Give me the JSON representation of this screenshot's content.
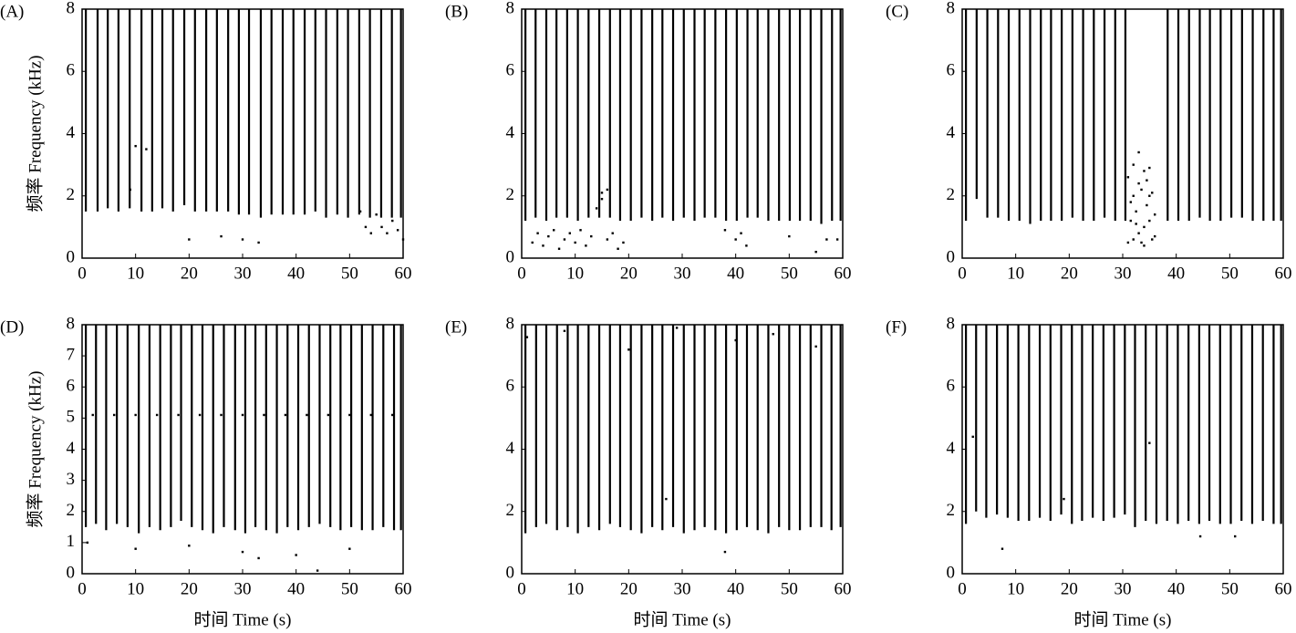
{
  "chart_data": [
    {
      "type": "stripe",
      "title": "(A)",
      "ylabel": "频率 Frequency (kHz)",
      "color": "#000000",
      "x": [
        0.7,
        2.9,
        4.8,
        6.8,
        8.9,
        11.1,
        13.1,
        15.0,
        17.0,
        19.1,
        21.1,
        23.2,
        25.2,
        27.3,
        29.3,
        31.2,
        33.4,
        35.4,
        37.5,
        39.5,
        41.6,
        43.6,
        45.6,
        47.7,
        49.7,
        51.8,
        53.8,
        55.9,
        57.9,
        59.6
      ],
      "values": [
        1.5,
        1.5,
        1.6,
        1.5,
        1.6,
        1.5,
        1.5,
        1.6,
        1.5,
        1.7,
        1.5,
        1.5,
        1.5,
        1.5,
        1.4,
        1.4,
        1.3,
        1.4,
        1.4,
        1.4,
        1.4,
        1.5,
        1.3,
        1.4,
        1.3,
        1.4,
        1.3,
        1.3,
        1.3,
        1.3
      ],
      "points": {
        "x": [
          52,
          53,
          54,
          55,
          56,
          57,
          58,
          59,
          60,
          26,
          30,
          33,
          9,
          10,
          12,
          20
        ],
        "y": [
          1.5,
          1.0,
          0.8,
          1.4,
          1.0,
          0.8,
          1.2,
          0.9,
          0.6,
          0.7,
          0.6,
          0.5,
          2.2,
          3.6,
          3.5,
          0.6
        ]
      },
      "xlim": [
        0,
        60
      ],
      "ylim": [
        0,
        8
      ],
      "xticks": [
        0,
        10,
        20,
        30,
        40,
        50,
        60
      ],
      "yticks": [
        0,
        2,
        4,
        6,
        8
      ]
    },
    {
      "type": "stripe",
      "title": "(B)",
      "color": "#000000",
      "x": [
        0.7,
        2.6,
        4.6,
        6.5,
        8.5,
        10.5,
        12.5,
        14.5,
        16.5,
        18.4,
        20.4,
        22.4,
        24.4,
        26.3,
        28.3,
        30.3,
        32.3,
        34.2,
        36.2,
        38.2,
        40.2,
        42.2,
        44.1,
        46.1,
        48.1,
        50.1,
        52.0,
        54.0,
        56.0,
        58.0,
        59.6
      ],
      "values": [
        1.2,
        1.3,
        1.2,
        1.3,
        1.3,
        1.2,
        1.3,
        1.3,
        1.3,
        1.2,
        1.2,
        1.3,
        1.2,
        1.3,
        1.2,
        1.3,
        1.2,
        1.3,
        1.3,
        1.2,
        1.2,
        1.3,
        1.3,
        1.2,
        1.2,
        1.2,
        1.2,
        1.2,
        1.1,
        1.2,
        1.2
      ],
      "points": {
        "x": [
          2,
          3,
          4,
          5,
          6,
          7,
          8,
          9,
          10,
          11,
          12,
          13,
          14,
          15,
          16,
          17,
          18,
          19,
          38,
          40,
          41,
          42,
          50,
          55,
          57,
          59,
          15,
          16
        ],
        "y": [
          0.5,
          0.8,
          0.4,
          0.7,
          0.9,
          0.3,
          0.6,
          0.8,
          0.5,
          0.9,
          0.4,
          0.7,
          1.6,
          1.9,
          0.6,
          0.8,
          0.3,
          0.5,
          0.9,
          0.6,
          0.8,
          0.4,
          0.7,
          0.2,
          0.6,
          0.6,
          2.1,
          2.2
        ]
      },
      "xlim": [
        0,
        60
      ],
      "ylim": [
        0,
        8
      ],
      "xticks": [
        0,
        10,
        20,
        30,
        40,
        50,
        60
      ],
      "yticks": [
        0,
        2,
        4,
        6,
        8
      ]
    },
    {
      "type": "stripe",
      "title": "(C)",
      "color": "#000000",
      "x": [
        0.7,
        2.7,
        4.7,
        6.7,
        8.7,
        10.7,
        12.7,
        14.7,
        16.6,
        18.6,
        20.6,
        22.6,
        24.6,
        26.6,
        28.6,
        30.5,
        38.4,
        40.4,
        42.4,
        44.4,
        46.3,
        48.3,
        50.3,
        52.3,
        54.3,
        56.3,
        58.2,
        59.6
      ],
      "values": [
        1.2,
        1.9,
        1.3,
        1.3,
        1.2,
        1.2,
        1.1,
        1.2,
        1.2,
        1.2,
        1.3,
        1.2,
        1.2,
        1.3,
        1.2,
        1.2,
        1.2,
        1.2,
        1.2,
        1.3,
        1.2,
        1.2,
        1.3,
        1.3,
        1.2,
        1.2,
        1.2,
        1.2
      ],
      "points": {
        "x": [
          31,
          31.5,
          32,
          32.5,
          33,
          33.5,
          34,
          34.5,
          35,
          35.5,
          36,
          31,
          32,
          33,
          34,
          35,
          36,
          31.5,
          32.5,
          33.5,
          34.5,
          35.5,
          33,
          34,
          32,
          35
        ],
        "y": [
          0.5,
          1.2,
          2.0,
          1.5,
          0.8,
          2.2,
          1.0,
          1.7,
          2.0,
          0.6,
          1.4,
          2.6,
          3.0,
          2.4,
          2.8,
          1.2,
          0.7,
          1.8,
          1.1,
          0.5,
          2.5,
          2.1,
          3.4,
          0.4,
          0.6,
          2.9
        ]
      },
      "xlim": [
        0,
        60
      ],
      "ylim": [
        0,
        8
      ],
      "xticks": [
        0,
        10,
        20,
        30,
        40,
        50,
        60
      ],
      "yticks": [
        0,
        2,
        4,
        6,
        8
      ]
    },
    {
      "type": "stripe",
      "title": "(D)",
      "ylabel": "频率 Frequency (kHz)",
      "xlabel": "时间 Time (s)",
      "color": "#000000",
      "x": [
        0.7,
        2.6,
        4.5,
        6.5,
        8.5,
        10.6,
        12.6,
        14.6,
        16.6,
        18.5,
        20.5,
        22.5,
        24.5,
        26.5,
        28.6,
        30.5,
        32.4,
        34.4,
        36.4,
        38.4,
        40.4,
        42.4,
        44.4,
        46.4,
        48.3,
        50.3,
        52.3,
        54.3,
        56.3,
        58.3,
        59.6
      ],
      "values": [
        1.5,
        1.6,
        1.4,
        1.6,
        1.5,
        1.3,
        1.5,
        1.4,
        1.5,
        1.7,
        1.5,
        1.4,
        1.3,
        1.5,
        1.4,
        1.3,
        1.5,
        1.4,
        1.3,
        1.5,
        1.4,
        1.5,
        1.6,
        1.5,
        1.4,
        1.5,
        1.4,
        1.4,
        1.5,
        1.4,
        1.4
      ],
      "points": {
        "x": [
          2,
          6,
          10,
          14,
          18,
          22,
          26,
          30,
          34,
          38,
          42,
          46,
          50,
          54,
          58,
          1,
          10,
          20,
          30,
          40,
          50,
          33,
          44
        ],
        "y": [
          5.1,
          5.1,
          5.1,
          5.1,
          5.1,
          5.1,
          5.1,
          5.1,
          5.1,
          5.1,
          5.1,
          5.1,
          5.1,
          5.1,
          5.1,
          1.0,
          0.8,
          0.9,
          0.7,
          0.6,
          0.8,
          0.5,
          0.1
        ]
      },
      "xlim": [
        0,
        60
      ],
      "ylim": [
        0,
        8
      ],
      "xticks": [
        0,
        10,
        20,
        30,
        40,
        50,
        60
      ],
      "yticks": [
        0,
        1,
        2,
        3,
        4,
        5,
        6,
        7,
        8
      ]
    },
    {
      "type": "stripe",
      "title": "(E)",
      "xlabel": "时间 Time (s)",
      "color": "#000000",
      "x": [
        0.7,
        2.7,
        4.6,
        6.6,
        8.6,
        10.5,
        12.5,
        14.5,
        16.5,
        18.4,
        20.4,
        22.4,
        24.4,
        26.3,
        28.3,
        30.3,
        32.3,
        34.2,
        36.2,
        38.2,
        40.2,
        42.1,
        44.1,
        46.1,
        48.1,
        50.0,
        52.0,
        54.0,
        56.0,
        57.9,
        59.6
      ],
      "values": [
        1.3,
        1.5,
        1.6,
        1.4,
        1.5,
        1.3,
        1.5,
        1.4,
        1.6,
        1.5,
        1.4,
        1.3,
        1.5,
        1.4,
        1.5,
        1.3,
        1.4,
        1.5,
        1.4,
        1.3,
        1.4,
        1.5,
        1.4,
        1.3,
        1.5,
        1.4,
        1.4,
        1.5,
        1.5,
        1.4,
        1.5
      ],
      "points": {
        "x": [
          1,
          8,
          20,
          29,
          40,
          47,
          55,
          27,
          38
        ],
        "y": [
          7.6,
          7.8,
          7.2,
          7.9,
          7.5,
          7.7,
          7.3,
          2.4,
          0.7
        ]
      },
      "xlim": [
        0,
        60
      ],
      "ylim": [
        0,
        8
      ],
      "xticks": [
        0,
        10,
        20,
        30,
        40,
        50,
        60
      ],
      "yticks": [
        0,
        2,
        4,
        6,
        8
      ]
    },
    {
      "type": "stripe",
      "title": "(F)",
      "xlabel": "时间 Time (s)",
      "color": "#000000",
      "x": [
        0.7,
        2.6,
        4.5,
        6.5,
        8.5,
        10.5,
        12.5,
        14.5,
        16.5,
        18.5,
        20.5,
        22.4,
        24.4,
        26.4,
        28.4,
        30.4,
        32.3,
        34.3,
        36.3,
        38.3,
        40.3,
        42.3,
        44.3,
        46.2,
        48.2,
        50.2,
        52.2,
        54.2,
        56.2,
        58.2,
        59.6
      ],
      "values": [
        1.6,
        2.0,
        1.8,
        1.9,
        1.8,
        1.7,
        1.7,
        1.8,
        1.7,
        1.9,
        1.6,
        1.7,
        1.8,
        1.7,
        1.8,
        1.9,
        1.5,
        1.7,
        1.6,
        1.7,
        1.6,
        1.7,
        1.6,
        1.7,
        1.6,
        1.6,
        1.7,
        1.6,
        1.7,
        1.6,
        1.6
      ],
      "points": {
        "x": [
          7.5,
          19,
          44.5,
          51,
          2,
          35
        ],
        "y": [
          0.8,
          2.4,
          1.2,
          1.2,
          4.4,
          4.2
        ]
      },
      "xlim": [
        0,
        60
      ],
      "ylim": [
        0,
        8
      ],
      "xticks": [
        0,
        10,
        20,
        30,
        40,
        50,
        60
      ],
      "yticks": [
        0,
        2,
        4,
        6,
        8
      ]
    }
  ]
}
